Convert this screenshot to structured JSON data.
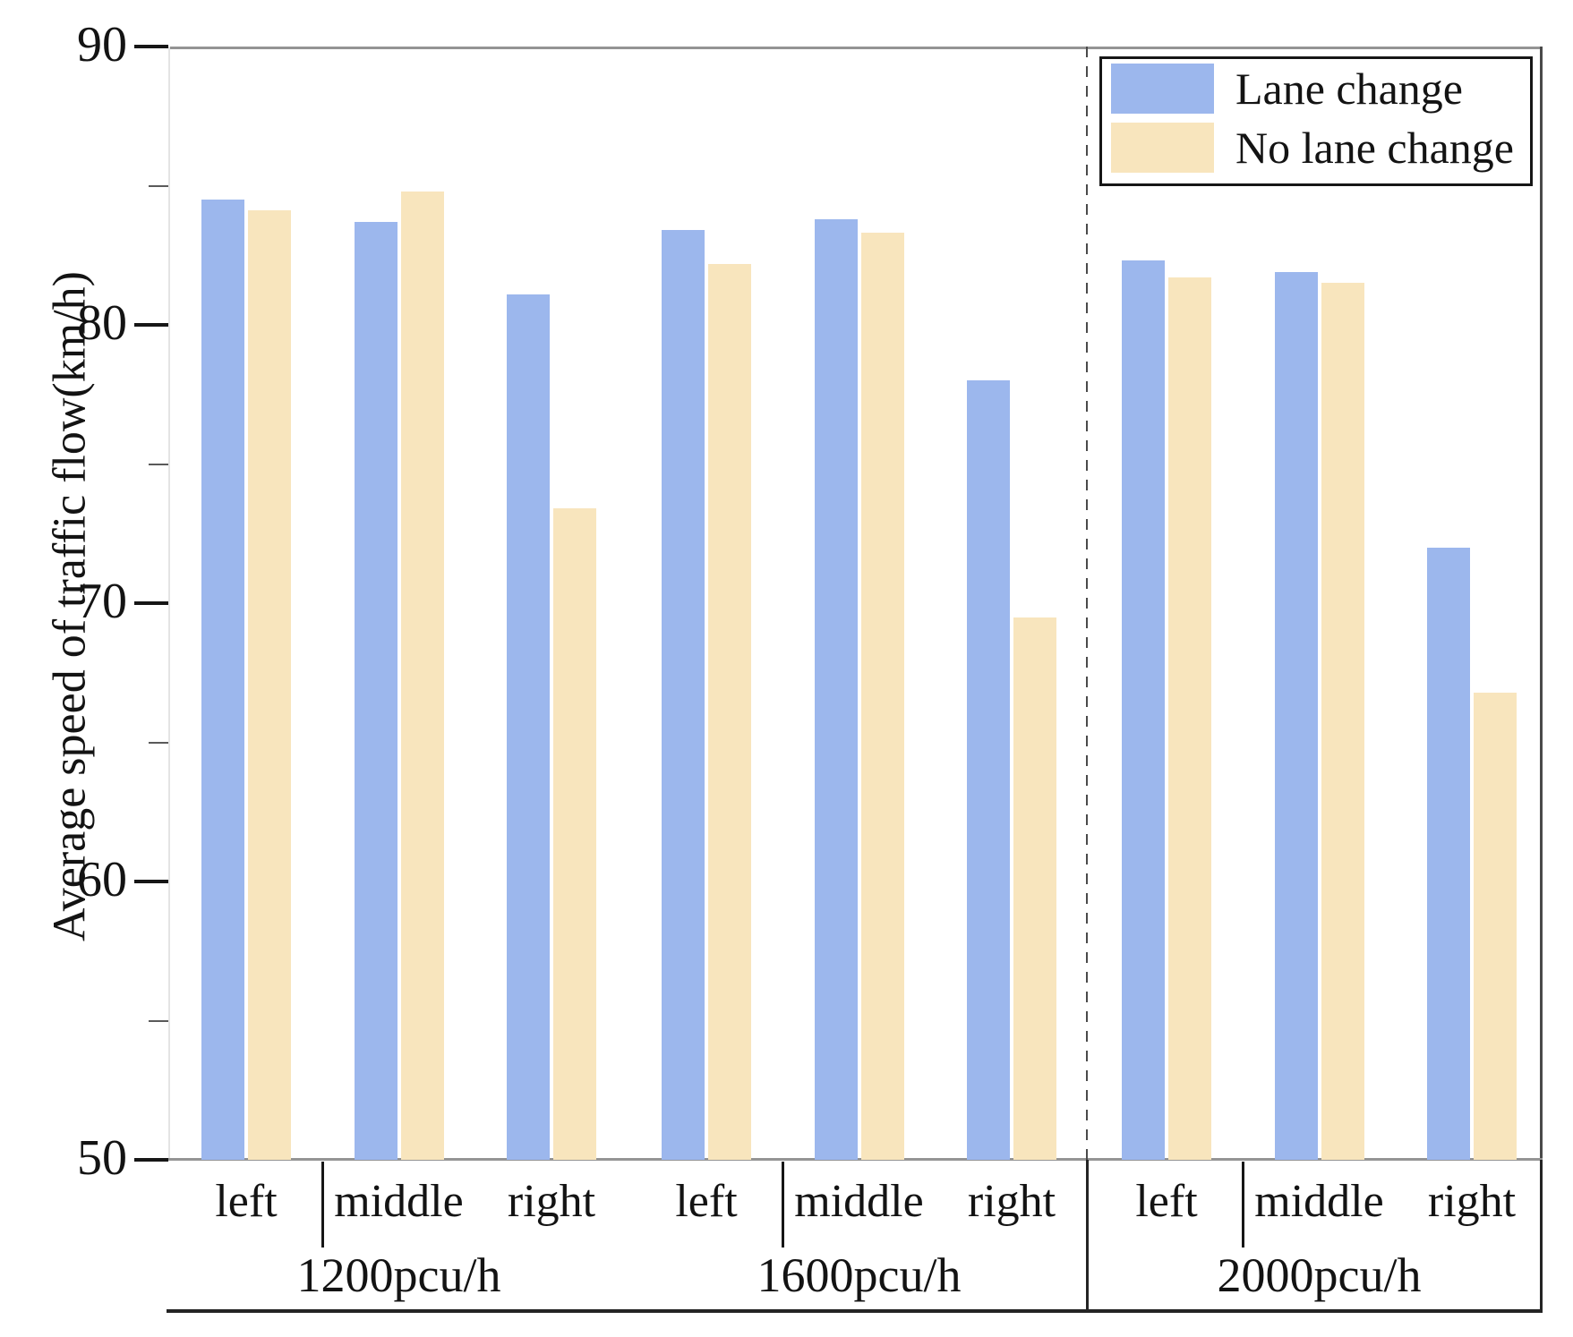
{
  "chart_data": {
    "type": "bar",
    "title": "",
    "ylabel": "Average speed of traffic flow(km/h)",
    "xlabel": "",
    "ylim": [
      50,
      90
    ],
    "yticks": [
      50,
      60,
      70,
      80,
      90
    ],
    "minor_yticks": [
      55,
      65,
      75,
      85
    ],
    "grid": false,
    "legend_position": "top-right",
    "lane_labels": [
      "left",
      "middle",
      "right"
    ],
    "groups": [
      {
        "label": "1200pcu/h",
        "lane_change": [
          84.5,
          83.7,
          81.1
        ],
        "no_lane_change": [
          84.1,
          84.8,
          73.4
        ]
      },
      {
        "label": "1600pcu/h",
        "lane_change": [
          83.4,
          83.8,
          78.0
        ],
        "no_lane_change": [
          82.2,
          83.3,
          69.5
        ]
      },
      {
        "label": "2000pcu/h",
        "lane_change": [
          82.3,
          81.9,
          72.0
        ],
        "no_lane_change": [
          81.7,
          81.5,
          66.8
        ]
      }
    ],
    "series": [
      {
        "name": "Lane change",
        "color": "#9cb7ed"
      },
      {
        "name": "No lane change",
        "color": "#f8e5bd"
      }
    ],
    "separator_between": "1600pcu/h and 2000pcu/h"
  }
}
